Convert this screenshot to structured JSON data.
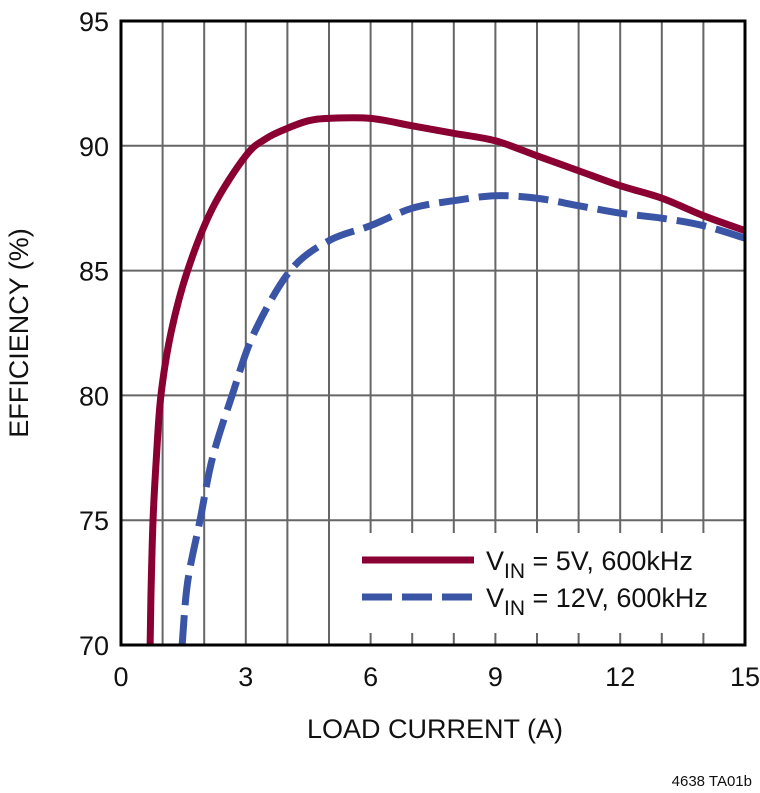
{
  "chart_data": {
    "type": "line",
    "title": "",
    "xlabel": "LOAD CURRENT (A)",
    "ylabel": "EFFICIENCY (%)",
    "xlim": [
      0,
      15
    ],
    "ylim": [
      70,
      95
    ],
    "xticks": [
      "0",
      "3",
      "6",
      "9",
      "12",
      "15"
    ],
    "xtick_values": [
      0,
      3,
      6,
      9,
      12,
      15
    ],
    "yticks": [
      "70",
      "75",
      "80",
      "85",
      "90",
      "95"
    ],
    "ytick_values": [
      70,
      75,
      80,
      85,
      90,
      95
    ],
    "grid": true,
    "x_grid_step": 1,
    "y_grid_step": 5,
    "legend_position": "bottom-right",
    "series": [
      {
        "name": "V_IN = 5V, 600kHz",
        "legend_main": "V",
        "legend_sub": "IN",
        "legend_rest": " = 5V, 600kHz",
        "color": "#8a0032",
        "style": "solid",
        "points": [
          [
            0.7,
            70
          ],
          [
            0.72,
            72
          ],
          [
            0.77,
            75
          ],
          [
            0.85,
            77.5
          ],
          [
            0.96,
            80
          ],
          [
            1.2,
            82.5
          ],
          [
            1.6,
            85
          ],
          [
            2.2,
            87.5
          ],
          [
            3,
            89.6
          ],
          [
            3.5,
            90.3
          ],
          [
            4,
            90.7
          ],
          [
            4.5,
            91.0
          ],
          [
            5,
            91.1
          ],
          [
            6,
            91.1
          ],
          [
            7,
            90.8
          ],
          [
            8,
            90.5
          ],
          [
            9,
            90.2
          ],
          [
            10,
            89.6
          ],
          [
            11,
            89.0
          ],
          [
            12,
            88.4
          ],
          [
            13,
            87.9
          ],
          [
            14,
            87.2
          ],
          [
            15,
            86.6
          ]
        ]
      },
      {
        "name": "V_IN = 12V, 600kHz",
        "legend_main": "V",
        "legend_sub": "IN",
        "legend_rest": " = 12V, 600kHz",
        "color": "#3a54a6",
        "style": "dashed",
        "points": [
          [
            1.47,
            70
          ],
          [
            1.6,
            72.5
          ],
          [
            1.9,
            75
          ],
          [
            2.2,
            77.5
          ],
          [
            2.67,
            80
          ],
          [
            3.2,
            82.5
          ],
          [
            4.07,
            85
          ],
          [
            5,
            86.2
          ],
          [
            6,
            86.8
          ],
          [
            7,
            87.5
          ],
          [
            8,
            87.8
          ],
          [
            9,
            88.0
          ],
          [
            10,
            87.9
          ],
          [
            11,
            87.6
          ],
          [
            12,
            87.3
          ],
          [
            13,
            87.1
          ],
          [
            14,
            86.8
          ],
          [
            15,
            86.3
          ]
        ]
      }
    ],
    "annotation": "4638 TA01b"
  }
}
